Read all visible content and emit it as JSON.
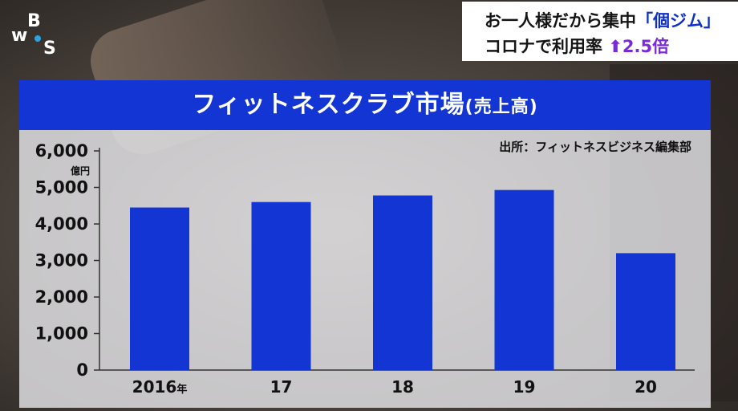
{
  "broadcast": {
    "logo_letters": [
      "w",
      "B",
      "S"
    ],
    "topic_line1_prefix": "お一人様だから集中",
    "topic_line1_bracket": "「個ジム」",
    "topic_line2_prefix": "コロナで利用率",
    "topic_line2_arrow": "⬆",
    "topic_line2_value": "2.5倍"
  },
  "panel": {
    "source": "出所：フィットネスビジネス編集部",
    "unit": "億円"
  },
  "colors": {
    "bar": "#1235d3",
    "title_bar": "#1235d3",
    "arrow": "#7a2ad8"
  },
  "chart_data": {
    "type": "bar",
    "title": "フィットネスクラブ市場",
    "subtitle": "(売上高)",
    "categories": [
      "2016",
      "17",
      "18",
      "19",
      "20"
    ],
    "first_category_suffix": "年",
    "values": [
      4450,
      4600,
      4780,
      4930,
      3200
    ],
    "ylabel": "億円",
    "ylim": [
      0,
      6000
    ],
    "yticks": [
      "0",
      "1,000",
      "2,000",
      "3,000",
      "4,000",
      "5,000",
      "6,000"
    ],
    "grid": false,
    "legend": "none"
  }
}
